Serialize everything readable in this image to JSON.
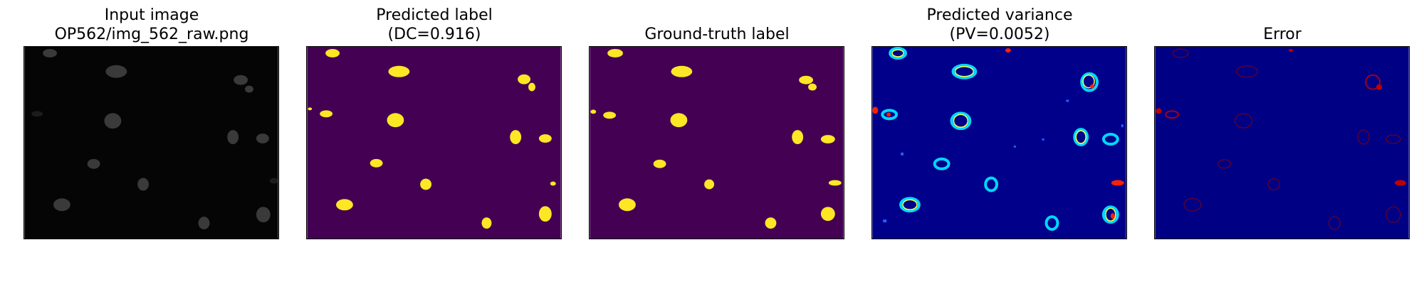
{
  "figure": {
    "panels": [
      {
        "id": "input",
        "title_lines": [
          "Input image",
          "OP562/img_562_raw.png"
        ],
        "background": "#050505"
      },
      {
        "id": "pred",
        "title_lines": [
          "Predicted label",
          "(DC=0.916)"
        ],
        "background": "#440154",
        "fill": "#fde725"
      },
      {
        "id": "gt",
        "title_lines": [
          "Ground-truth label"
        ],
        "background": "#440154",
        "fill": "#fde725"
      },
      {
        "id": "var",
        "title_lines": [
          "Predicted variance",
          "(PV=0.0052)"
        ],
        "background": "#00008b"
      },
      {
        "id": "err",
        "title_lines": [
          "Error"
        ],
        "background": "#000085"
      }
    ]
  }
}
